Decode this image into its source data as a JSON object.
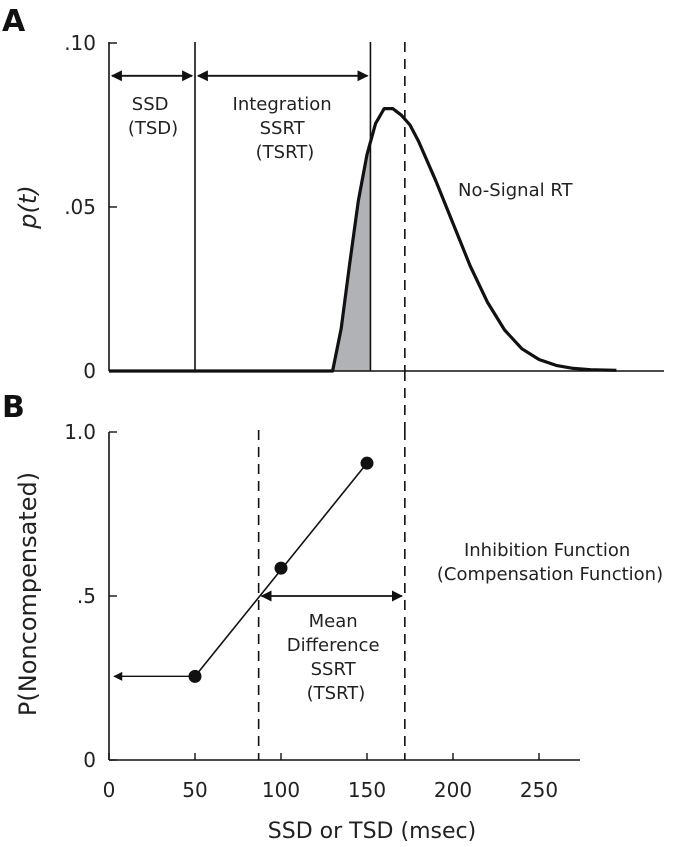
{
  "chart_data": [
    {
      "panel_label": "A",
      "type": "line",
      "title": "",
      "ylabel": "p(t)",
      "ylim": [
        0,
        0.1
      ],
      "xlim": [
        0,
        300
      ],
      "x_ticks": [],
      "y_ticks": [
        {
          "value": 0.1,
          "label": ".10"
        },
        {
          "value": 0.05,
          "label": ".05"
        },
        {
          "value": 0.0,
          "label": "0"
        }
      ],
      "series": [
        {
          "name": "No-Signal RT",
          "x": [
            0,
            130,
            135,
            140,
            145,
            150,
            155,
            160,
            165,
            170,
            175,
            180,
            190,
            200,
            210,
            220,
            230,
            240,
            250,
            260,
            270,
            280,
            295
          ],
          "y": [
            0,
            0,
            0.013,
            0.033,
            0.052,
            0.066,
            0.0755,
            0.08,
            0.08,
            0.078,
            0.075,
            0.07,
            0.058,
            0.045,
            0.032,
            0.021,
            0.0125,
            0.0068,
            0.0035,
            0.0017,
            0.0008,
            0.0004,
            0.0002
          ]
        }
      ],
      "shaded_region": {
        "x_from": 130,
        "x_to": 152,
        "color": "#b1b2b6"
      },
      "vlines": [
        {
          "x": 50,
          "style": "solid"
        },
        {
          "x": 152,
          "style": "solid"
        },
        {
          "x": 172,
          "style": "dashed"
        }
      ],
      "arrows": [
        {
          "from": 0,
          "to": 50,
          "y": 0.09
        },
        {
          "from": 50,
          "to": 152,
          "y": 0.09
        }
      ],
      "annotations": [
        {
          "lines": [
            "SSD",
            "(TSD)"
          ]
        },
        {
          "lines": [
            "Integration",
            "SSRT",
            "(TSRT)"
          ]
        },
        {
          "lines": [
            "No-Signal RT"
          ]
        }
      ]
    },
    {
      "panel_label": "B",
      "type": "scatter",
      "title": "",
      "xlabel": "SSD or TSD (msec)",
      "ylabel": "P(Noncompensated)",
      "xlim": [
        0,
        300
      ],
      "ylim": [
        0,
        1.0
      ],
      "x_ticks": [
        {
          "value": 0,
          "label": "0"
        },
        {
          "value": 50,
          "label": "50"
        },
        {
          "value": 100,
          "label": "100"
        },
        {
          "value": 150,
          "label": "150"
        },
        {
          "value": 200,
          "label": "200"
        },
        {
          "value": 250,
          "label": "250"
        }
      ],
      "y_ticks": [
        {
          "value": 1.0,
          "label": "1.0"
        },
        {
          "value": 0.5,
          "label": ".5"
        },
        {
          "value": 0.0,
          "label": "0"
        }
      ],
      "points": [
        {
          "x": 50,
          "y": 0.255
        },
        {
          "x": 100,
          "y": 0.585
        },
        {
          "x": 150,
          "y": 0.905
        }
      ],
      "fit_line": {
        "from": [
          50,
          0.255
        ],
        "to": [
          150,
          0.905
        ]
      },
      "vlines": [
        {
          "x": 87,
          "style": "dashed"
        },
        {
          "x": 172,
          "style": "dashed"
        }
      ],
      "arrows": [
        {
          "from": 87,
          "to": 172,
          "y": 0.5,
          "type": "double"
        },
        {
          "from": 48,
          "to": 3,
          "y": 0.255,
          "type": "left"
        }
      ],
      "annotations": [
        {
          "lines": [
            "Inhibition Function",
            "(Compensation Function)"
          ]
        },
        {
          "lines": [
            "Mean",
            "Difference",
            "SSRT",
            "(TSRT)"
          ]
        }
      ]
    }
  ]
}
